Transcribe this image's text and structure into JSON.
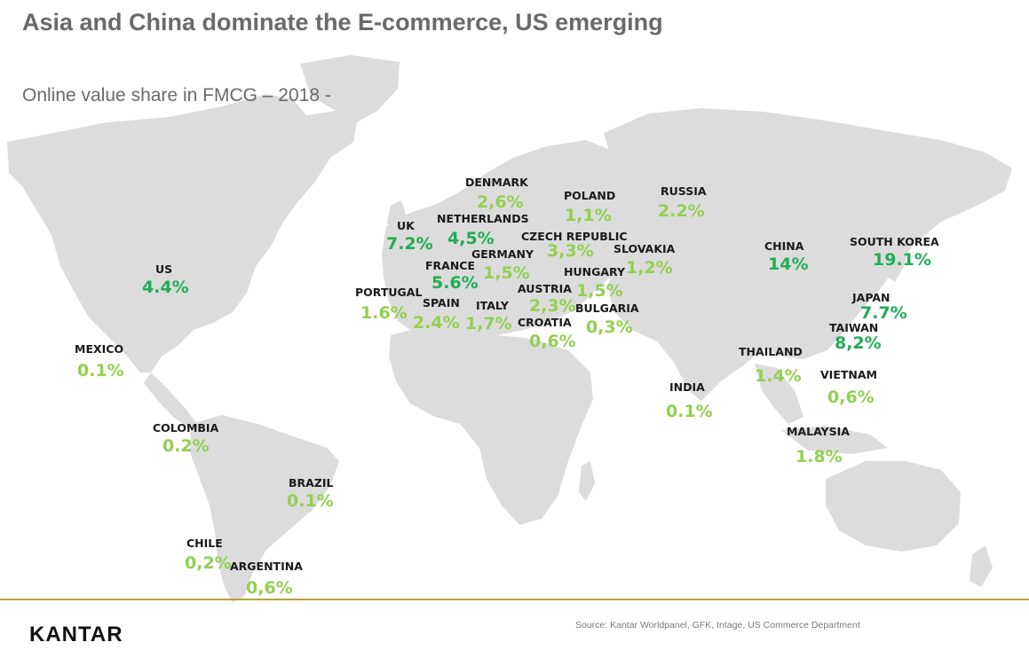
{
  "header": {
    "title": "Asia and China dominate the E-commerce, US emerging",
    "subtitle": "Online value share in FMCG – 2018 -"
  },
  "colors": {
    "dark_green": "#1fad54",
    "light_green": "#92d050",
    "land": "#dcdcdc",
    "gold_line": "#b9a23a"
  },
  "countries": [
    {
      "name": "US",
      "value": "4.4%",
      "color": "dark"
    },
    {
      "name": "MEXICO",
      "value": "0.1%",
      "color": "light"
    },
    {
      "name": "COLOMBIA",
      "value": "0.2%",
      "color": "light"
    },
    {
      "name": "BRAZIL",
      "value": "0.1%",
      "color": "light"
    },
    {
      "name": "CHILE",
      "value": "0,2%",
      "color": "light"
    },
    {
      "name": "ARGENTINA",
      "value": "0,6%",
      "color": "light"
    },
    {
      "name": "UK",
      "value": "7.2%",
      "color": "dark"
    },
    {
      "name": "DENMARK",
      "value": "2,6%",
      "color": "light"
    },
    {
      "name": "NETHERLANDS",
      "value": "4,5%",
      "color": "dark"
    },
    {
      "name": "FRANCE",
      "value": "5.6%",
      "color": "dark"
    },
    {
      "name": "PORTUGAL",
      "value": "1.6%",
      "color": "light"
    },
    {
      "name": "SPAIN",
      "value": "2.4%",
      "color": "light"
    },
    {
      "name": "GERMANY",
      "value": "1,5%",
      "color": "light"
    },
    {
      "name": "ITALY",
      "value": "1,7%",
      "color": "light"
    },
    {
      "name": "POLAND",
      "value": "1,1%",
      "color": "light"
    },
    {
      "name": "CZECH REPUBLIC",
      "value": "3,3%",
      "color": "light"
    },
    {
      "name": "AUSTRIA",
      "value": "2,3%",
      "color": "light"
    },
    {
      "name": "CROATIA",
      "value": "0,6%",
      "color": "light"
    },
    {
      "name": "HUNGARY",
      "value": "1,5%",
      "color": "light"
    },
    {
      "name": "SLOVAKIA",
      "value": "1,2%",
      "color": "light"
    },
    {
      "name": "BULGARIA",
      "value": "0,3%",
      "color": "light"
    },
    {
      "name": "RUSSIA",
      "value": "2.2%",
      "color": "light"
    },
    {
      "name": "CHINA",
      "value": "14%",
      "color": "dark"
    },
    {
      "name": "SOUTH KOREA",
      "value": "19.1%",
      "color": "dark"
    },
    {
      "name": "JAPAN",
      "value": "7.7%",
      "color": "dark"
    },
    {
      "name": "TAIWAN",
      "value": "8,2%",
      "color": "dark"
    },
    {
      "name": "THAILAND",
      "value": "1.4%",
      "color": "light"
    },
    {
      "name": "VIETNAM",
      "value": "0,6%",
      "color": "light"
    },
    {
      "name": "INDIA",
      "value": "0.1%",
      "color": "light"
    },
    {
      "name": "MALAYSIA",
      "value": "1.8%",
      "color": "light"
    }
  ],
  "footer": {
    "logo": "KANTAR",
    "source": "Source: Kantar Worldpanel, GFK, Intage, US Commerce Department"
  }
}
